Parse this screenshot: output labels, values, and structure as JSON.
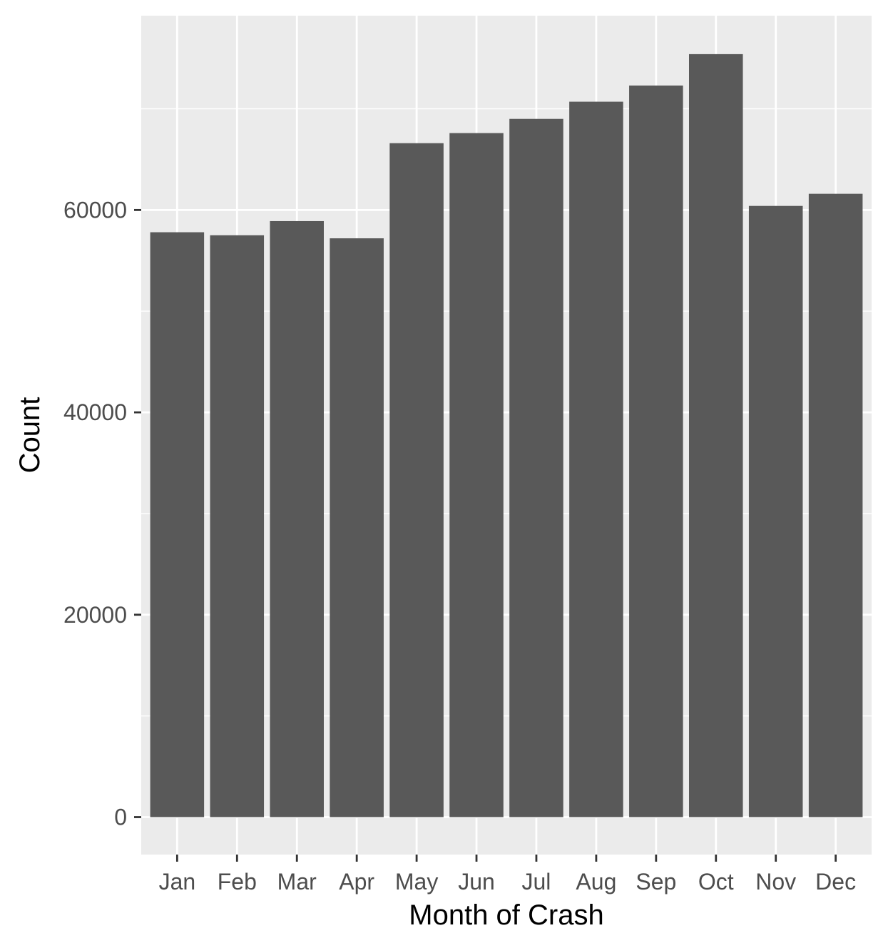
{
  "chart_data": {
    "type": "bar",
    "title": "",
    "xlabel": "Month of Crash",
    "ylabel": "Count",
    "categories": [
      "Jan",
      "Feb",
      "Mar",
      "Apr",
      "May",
      "Jun",
      "Jul",
      "Aug",
      "Sep",
      "Oct",
      "Nov",
      "Dec"
    ],
    "values": [
      57800,
      57500,
      58900,
      57200,
      66600,
      67600,
      69000,
      70700,
      72300,
      75400,
      60400,
      61600
    ],
    "yticks": [
      0,
      20000,
      40000,
      60000
    ],
    "ylim": [
      -3700,
      79200
    ],
    "grid": true,
    "legend": "none",
    "colors": {
      "bar": "#595959",
      "panel": "#ebebeb",
      "grid": "#ffffff",
      "tick_text": "#4d4d4d",
      "tick_mark": "#333333",
      "axis_title": "#000000"
    }
  }
}
